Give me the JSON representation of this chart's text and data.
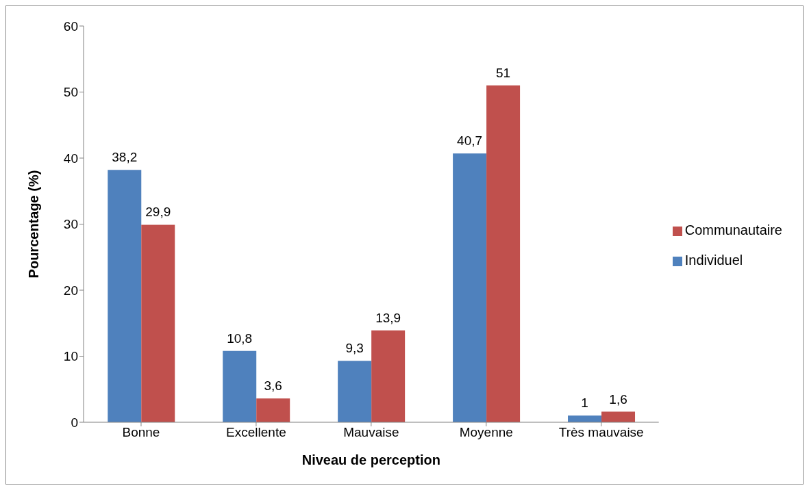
{
  "chart_data": {
    "type": "bar",
    "xlabel": "Niveau de perception",
    "ylabel": "Pourcentage (%)",
    "categories": [
      "Bonne",
      "Excellente",
      "Mauvaise",
      "Moyenne",
      "Très mauvaise"
    ],
    "series": [
      {
        "name": "Individuel",
        "color": "#4f81bd",
        "values": [
          38.2,
          10.8,
          9.3,
          40.7,
          1
        ],
        "value_labels": [
          "38,2",
          "10,8",
          "9,3",
          "40,7",
          "1"
        ]
      },
      {
        "name": "Communautaire",
        "color": "#c0504d",
        "values": [
          29.9,
          3.6,
          13.9,
          51,
          1.6
        ],
        "value_labels": [
          "29,9",
          "3,6",
          "13,9",
          "51",
          "1,6"
        ]
      }
    ],
    "ylim": [
      0,
      60
    ],
    "yticks": [
      0,
      10,
      20,
      30,
      40,
      50,
      60
    ],
    "grid": false,
    "legend": "right"
  }
}
